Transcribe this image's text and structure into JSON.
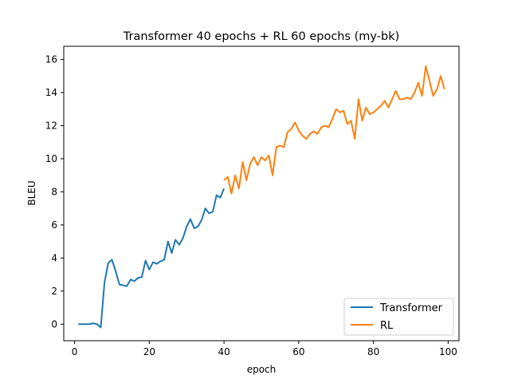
{
  "chart_data": {
    "type": "line",
    "title": "Transformer 40 epochs + RL 60 epochs (my-bk)",
    "xlabel": "epoch",
    "ylabel": "BLEU",
    "xlim": [
      -2.9,
      102.9
    ],
    "ylim": [
      -1.0,
      16.8
    ],
    "x_ticks": [
      0,
      20,
      40,
      60,
      80,
      100
    ],
    "y_ticks": [
      0,
      2,
      4,
      6,
      8,
      10,
      12,
      14,
      16
    ],
    "grid": false,
    "legend_position": "lower right",
    "series": [
      {
        "name": "Transformer",
        "color": "#1f77b4",
        "x": [
          1,
          2,
          3,
          4,
          5,
          6,
          7,
          8,
          9,
          10,
          11,
          12,
          13,
          14,
          15,
          16,
          17,
          18,
          19,
          20,
          21,
          22,
          23,
          24,
          25,
          26,
          27,
          28,
          29,
          30,
          31,
          32,
          33,
          34,
          35,
          36,
          37,
          38,
          39,
          40
        ],
        "y": [
          0.0,
          0.0,
          0.0,
          0.0,
          0.05,
          0.0,
          -0.2,
          2.5,
          3.7,
          3.9,
          3.2,
          2.4,
          2.35,
          2.3,
          2.7,
          2.6,
          2.8,
          2.85,
          3.85,
          3.3,
          3.75,
          3.65,
          3.8,
          3.9,
          5.0,
          4.3,
          5.1,
          4.8,
          5.2,
          5.9,
          6.35,
          5.8,
          5.9,
          6.3,
          7.0,
          6.7,
          6.8,
          7.8,
          7.65,
          8.2
        ]
      },
      {
        "name": "RL",
        "color": "#ff7f0e",
        "x": [
          40,
          41,
          42,
          43,
          44,
          45,
          46,
          47,
          48,
          49,
          50,
          51,
          52,
          53,
          54,
          55,
          56,
          57,
          58,
          59,
          60,
          61,
          62,
          63,
          64,
          65,
          66,
          67,
          68,
          69,
          70,
          71,
          72,
          73,
          74,
          75,
          76,
          77,
          78,
          79,
          80,
          81,
          82,
          83,
          84,
          85,
          86,
          87,
          88,
          89,
          90,
          91,
          92,
          93,
          94,
          95,
          96,
          97,
          98,
          99
        ],
        "y": [
          8.7,
          8.9,
          7.9,
          9.0,
          8.2,
          9.8,
          8.7,
          9.7,
          10.1,
          9.6,
          10.1,
          9.9,
          10.2,
          9.0,
          10.7,
          10.8,
          10.7,
          11.6,
          11.8,
          12.2,
          11.7,
          11.4,
          11.2,
          11.5,
          11.65,
          11.5,
          11.9,
          12.0,
          11.9,
          12.4,
          13.0,
          12.8,
          12.9,
          12.1,
          12.3,
          11.2,
          13.6,
          12.3,
          13.1,
          12.7,
          12.8,
          13.0,
          13.2,
          13.5,
          13.1,
          13.6,
          14.1,
          13.6,
          13.6,
          13.7,
          13.6,
          14.0,
          14.6,
          13.8,
          15.6,
          14.7,
          13.8,
          14.2,
          15.0,
          14.2
        ]
      }
    ]
  }
}
